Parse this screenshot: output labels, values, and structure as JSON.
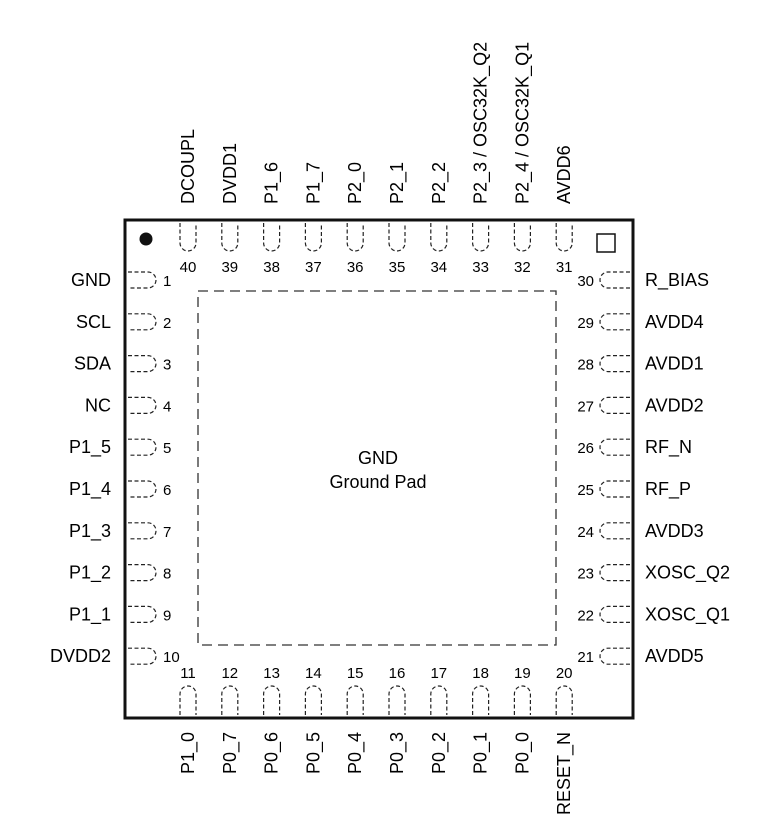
{
  "package": {
    "pad": {
      "line1": "GND",
      "line2": "Ground Pad"
    },
    "left_pins": [
      {
        "num": "1",
        "name": "GND"
      },
      {
        "num": "2",
        "name": "SCL"
      },
      {
        "num": "3",
        "name": "SDA"
      },
      {
        "num": "4",
        "name": "NC"
      },
      {
        "num": "5",
        "name": "P1_5"
      },
      {
        "num": "6",
        "name": "P1_4"
      },
      {
        "num": "7",
        "name": "P1_3"
      },
      {
        "num": "8",
        "name": "P1_2"
      },
      {
        "num": "9",
        "name": "P1_1"
      },
      {
        "num": "10",
        "name": "DVDD2"
      }
    ],
    "bottom_pins": [
      {
        "num": "11",
        "name": "P1_0"
      },
      {
        "num": "12",
        "name": "P0_7"
      },
      {
        "num": "13",
        "name": "P0_6"
      },
      {
        "num": "14",
        "name": "P0_5"
      },
      {
        "num": "15",
        "name": "P0_4"
      },
      {
        "num": "16",
        "name": "P0_3"
      },
      {
        "num": "17",
        "name": "P0_2"
      },
      {
        "num": "18",
        "name": "P0_1"
      },
      {
        "num": "19",
        "name": "P0_0"
      },
      {
        "num": "20",
        "name": "RESET_N"
      }
    ],
    "right_pins": [
      {
        "num": "21",
        "name": "AVDD5"
      },
      {
        "num": "22",
        "name": "XOSC_Q1"
      },
      {
        "num": "23",
        "name": "XOSC_Q2"
      },
      {
        "num": "24",
        "name": "AVDD3"
      },
      {
        "num": "25",
        "name": "RF_P"
      },
      {
        "num": "26",
        "name": "RF_N"
      },
      {
        "num": "27",
        "name": "AVDD2"
      },
      {
        "num": "28",
        "name": "AVDD1"
      },
      {
        "num": "29",
        "name": "AVDD4"
      },
      {
        "num": "30",
        "name": "R_BIAS"
      }
    ],
    "top_pins": [
      {
        "num": "31",
        "name": "AVDD6"
      },
      {
        "num": "32",
        "name": "P2_4 / OSC32K_Q1"
      },
      {
        "num": "33",
        "name": "P2_3 / OSC32K_Q2"
      },
      {
        "num": "34",
        "name": "P2_2"
      },
      {
        "num": "35",
        "name": "P2_1"
      },
      {
        "num": "36",
        "name": "P2_0"
      },
      {
        "num": "37",
        "name": "P1_7"
      },
      {
        "num": "38",
        "name": "P1_6"
      },
      {
        "num": "39",
        "name": "DVDD1"
      },
      {
        "num": "40",
        "name": "DCOUPL"
      }
    ]
  }
}
